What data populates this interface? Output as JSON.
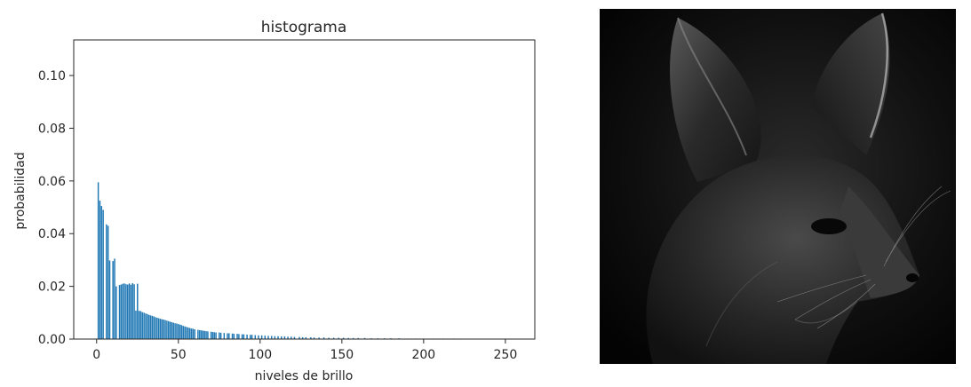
{
  "chart_data": {
    "type": "bar",
    "title": "histograma",
    "xlabel": "niveles de brillo",
    "ylabel": "probabilidad",
    "xlim": [
      -14,
      268
    ],
    "ylim": [
      0,
      0.1135
    ],
    "xticks": [
      0,
      50,
      100,
      150,
      200,
      250
    ],
    "yticks": [
      0.0,
      0.02,
      0.04,
      0.06,
      0.08,
      0.1
    ],
    "xtick_labels": [
      "0",
      "50",
      "100",
      "150",
      "200",
      "250"
    ],
    "ytick_labels": [
      "0.00",
      "0.02",
      "0.04",
      "0.06",
      "0.08",
      "0.10"
    ],
    "color": "#1f77b4",
    "grid": false,
    "x": [
      1,
      2,
      3,
      4,
      6,
      7,
      8,
      10,
      11,
      12,
      14,
      15,
      16,
      17,
      18,
      19,
      20,
      21,
      22,
      23,
      24,
      25,
      26,
      27,
      28,
      29,
      30,
      31,
      32,
      33,
      34,
      35,
      36,
      37,
      38,
      39,
      40,
      41,
      42,
      43,
      44,
      45,
      46,
      47,
      48,
      49,
      50,
      51,
      52,
      53,
      54,
      55,
      56,
      57,
      58,
      59,
      60,
      62,
      63,
      64,
      65,
      66,
      67,
      68,
      70,
      71,
      72,
      73,
      75,
      76,
      78,
      80,
      81,
      83,
      84,
      86,
      87,
      89,
      90,
      92,
      94,
      95,
      97,
      99,
      101,
      103,
      105,
      107,
      109,
      111,
      113,
      115,
      117,
      119,
      121,
      124,
      126,
      128,
      131,
      133,
      136,
      139,
      142,
      145,
      148,
      151,
      154,
      157,
      160,
      164,
      168,
      172,
      176,
      180,
      185,
      190,
      195,
      200,
      206,
      212,
      219,
      226,
      233
    ],
    "values": [
      0.0595,
      0.0525,
      0.0505,
      0.049,
      0.0435,
      0.043,
      0.0298,
      0.0296,
      0.0305,
      0.02,
      0.0205,
      0.0207,
      0.021,
      0.0211,
      0.0208,
      0.0207,
      0.0211,
      0.0206,
      0.0212,
      0.0208,
      0.0108,
      0.021,
      0.0107,
      0.0106,
      0.0102,
      0.01,
      0.0097,
      0.0095,
      0.0092,
      0.009,
      0.0088,
      0.0086,
      0.0083,
      0.0081,
      0.0079,
      0.0077,
      0.0075,
      0.0074,
      0.0072,
      0.007,
      0.0068,
      0.0066,
      0.0064,
      0.0062,
      0.006,
      0.0059,
      0.0057,
      0.0055,
      0.0053,
      0.005,
      0.0048,
      0.0046,
      0.0044,
      0.0042,
      0.004,
      0.0039,
      0.0037,
      0.0035,
      0.0034,
      0.0033,
      0.0032,
      0.0031,
      0.003,
      0.0029,
      0.0028,
      0.0027,
      0.0026,
      0.0025,
      0.0025,
      0.0024,
      0.0023,
      0.0022,
      0.0022,
      0.0021,
      0.002,
      0.002,
      0.0019,
      0.0018,
      0.0018,
      0.0017,
      0.0016,
      0.0016,
      0.0015,
      0.0014,
      0.0014,
      0.0013,
      0.0012,
      0.0012,
      0.0011,
      0.0011,
      0.001,
      0.001,
      0.0009,
      0.0009,
      0.0008,
      0.0008,
      0.0007,
      0.0007,
      0.0007,
      0.0006,
      0.0006,
      0.0006,
      0.0005,
      0.0005,
      0.0005,
      0.0005,
      0.0004,
      0.0004,
      0.0004,
      0.0004,
      0.0003,
      0.0003,
      0.0003,
      0.0003,
      0.0003,
      0.0002,
      0.0002,
      0.0002,
      0.0002,
      0.0002,
      0.0002,
      0.0001,
      0.0001
    ]
  },
  "photo": {
    "icon": "fennec-fox-grayscale-photo"
  }
}
